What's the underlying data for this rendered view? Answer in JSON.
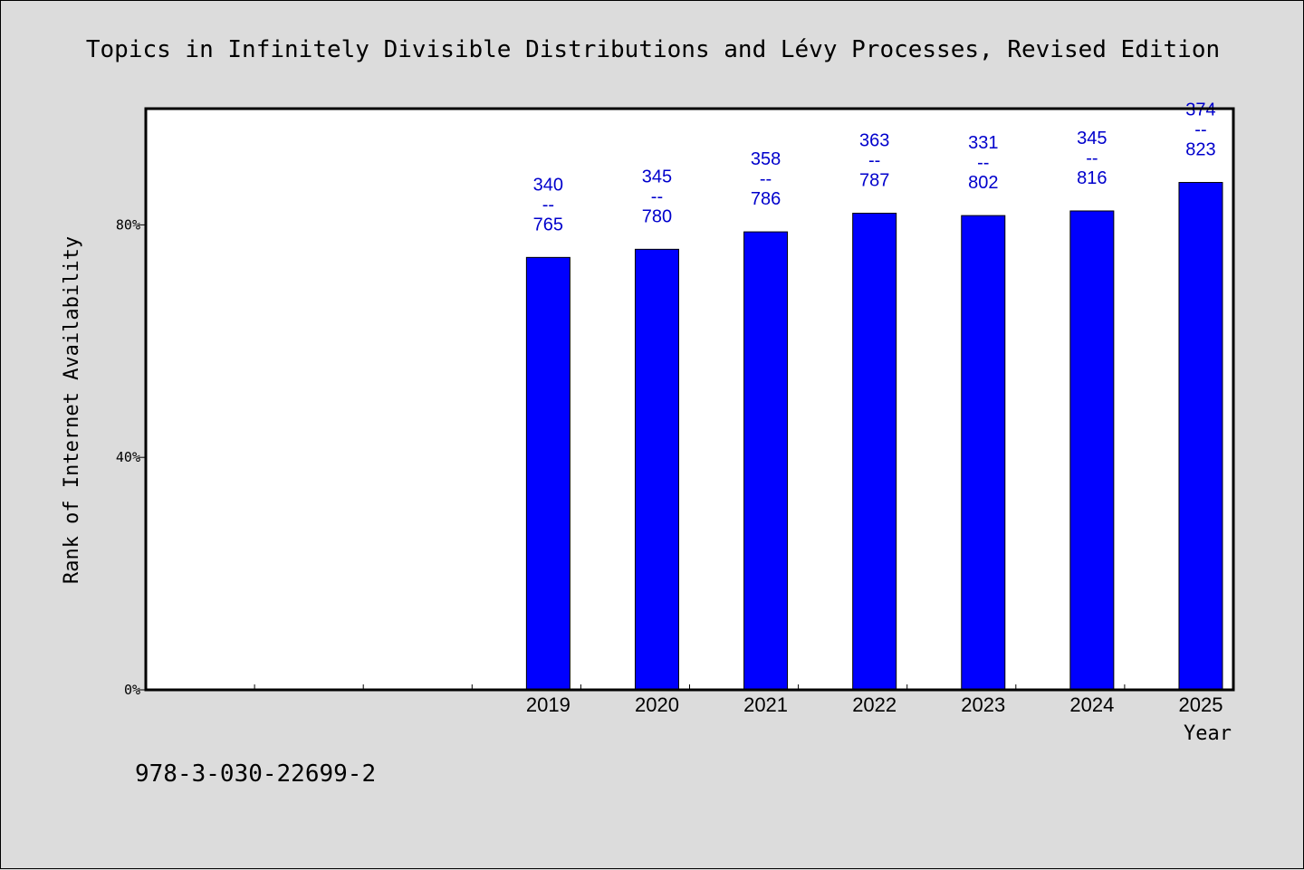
{
  "chart_data": {
    "type": "bar",
    "title": "Topics in Infinitely Divisible Distributions and Lévy Processes, Revised Edition",
    "xlabel": "Year",
    "ylabel": "Rank of Internet Availability",
    "categories": [
      "",
      "",
      "",
      "2019",
      "2020",
      "2021",
      "2022",
      "2023",
      "2024",
      "2025"
    ],
    "series": [
      {
        "values": [
          null,
          null,
          null,
          74.4,
          75.8,
          78.8,
          82.0,
          81.6,
          82.4,
          87.3
        ],
        "labels": [
          null,
          null,
          null,
          [
            "340",
            "--",
            "765"
          ],
          [
            "345",
            "--",
            "780"
          ],
          [
            "358",
            "--",
            "786"
          ],
          [
            "363",
            "--",
            "787"
          ],
          [
            "331",
            "--",
            "802"
          ],
          [
            "345",
            "--",
            "816"
          ],
          [
            "374",
            "--",
            "823"
          ]
        ]
      }
    ],
    "ylim": [
      0,
      100
    ],
    "yticks": [
      0,
      40,
      80
    ],
    "ytick_labels": [
      "0%",
      "40%",
      "80%"
    ],
    "grid": false,
    "colors": {
      "bar": "#0000ff",
      "label": "#0000cc",
      "plot_background": "#ffffff",
      "page_background": "#dcdcdc"
    }
  },
  "footnote": "978-3-030-22699-2"
}
